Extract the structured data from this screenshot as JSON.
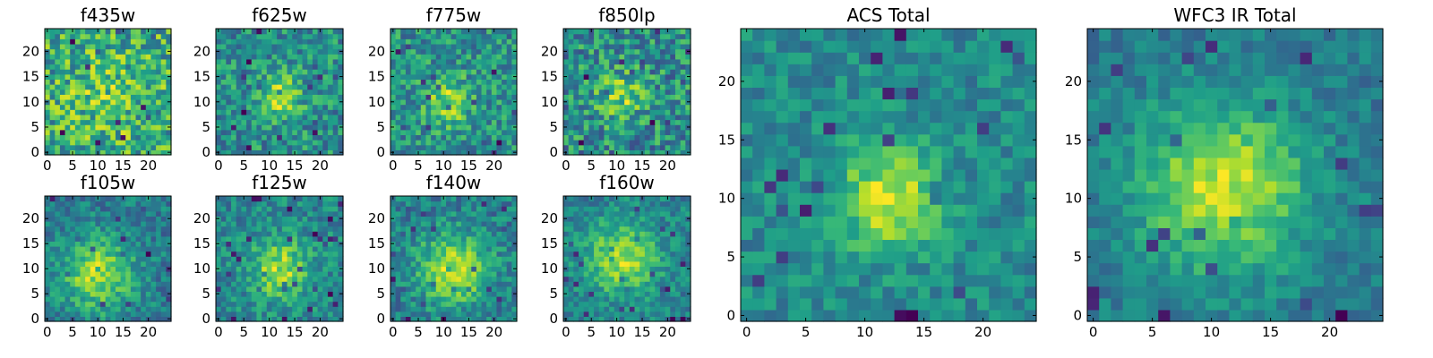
{
  "figure": {
    "background": "#ffffff"
  },
  "colormap": {
    "name": "viridis",
    "stops": [
      "#440154",
      "#482878",
      "#3e4989",
      "#31688e",
      "#26828e",
      "#1f9e89",
      "#35b779",
      "#6ece58",
      "#b5de2b",
      "#fde725"
    ]
  },
  "chart_data": [
    {
      "type": "heatmap",
      "title": "f435w",
      "grid": [
        25,
        25
      ],
      "xlim": [
        -0.5,
        24.5
      ],
      "ylim": [
        -0.5,
        24.5
      ],
      "xticks": [
        0,
        5,
        10,
        15,
        20
      ],
      "yticks": [
        0,
        5,
        10,
        15,
        20
      ],
      "colormap": "viridis",
      "texture": {
        "noise": 0.9,
        "peak": 0.2,
        "center": [
          12,
          11
        ],
        "sigma": 6,
        "seed": 11
      }
    },
    {
      "type": "heatmap",
      "title": "f625w",
      "grid": [
        25,
        25
      ],
      "xlim": [
        -0.5,
        24.5
      ],
      "ylim": [
        -0.5,
        24.5
      ],
      "xticks": [
        0,
        5,
        10,
        15,
        20
      ],
      "yticks": [
        0,
        5,
        10,
        15,
        20
      ],
      "colormap": "viridis",
      "texture": {
        "noise": 0.8,
        "peak": 0.6,
        "center": [
          12,
          11
        ],
        "sigma": 3.2,
        "seed": 23
      }
    },
    {
      "type": "heatmap",
      "title": "f775w",
      "grid": [
        25,
        25
      ],
      "xlim": [
        -0.5,
        24.5
      ],
      "ylim": [
        -0.5,
        24.5
      ],
      "xticks": [
        0,
        5,
        10,
        15,
        20
      ],
      "yticks": [
        0,
        5,
        10,
        15,
        20
      ],
      "colormap": "viridis",
      "texture": {
        "noise": 0.8,
        "peak": 0.6,
        "center": [
          11,
          10
        ],
        "sigma": 3.2,
        "seed": 37
      }
    },
    {
      "type": "heatmap",
      "title": "f850lp",
      "grid": [
        25,
        25
      ],
      "xlim": [
        -0.5,
        24.5
      ],
      "ylim": [
        -0.5,
        24.5
      ],
      "xticks": [
        0,
        5,
        10,
        15,
        20
      ],
      "yticks": [
        0,
        5,
        10,
        15,
        20
      ],
      "colormap": "viridis",
      "texture": {
        "noise": 0.85,
        "peak": 0.45,
        "center": [
          11,
          11
        ],
        "sigma": 3.5,
        "seed": 41
      }
    },
    {
      "type": "heatmap",
      "title": "f105w",
      "grid": [
        25,
        25
      ],
      "xlim": [
        -0.5,
        24.5
      ],
      "ylim": [
        -0.5,
        24.5
      ],
      "xticks": [
        0,
        5,
        10,
        15,
        20
      ],
      "yticks": [
        0,
        5,
        10,
        15,
        20
      ],
      "colormap": "viridis",
      "texture": {
        "noise": 0.55,
        "peak": 0.75,
        "center": [
          10,
          9
        ],
        "sigma": 5,
        "seed": 53
      }
    },
    {
      "type": "heatmap",
      "title": "f125w",
      "grid": [
        25,
        25
      ],
      "xlim": [
        -0.5,
        24.5
      ],
      "ylim": [
        -0.5,
        24.5
      ],
      "xticks": [
        0,
        5,
        10,
        15,
        20
      ],
      "yticks": [
        0,
        5,
        10,
        15,
        20
      ],
      "colormap": "viridis",
      "texture": {
        "noise": 0.6,
        "peak": 0.7,
        "center": [
          12,
          10
        ],
        "sigma": 4,
        "seed": 67
      }
    },
    {
      "type": "heatmap",
      "title": "f140w",
      "grid": [
        25,
        25
      ],
      "xlim": [
        -0.5,
        24.5
      ],
      "ylim": [
        -0.5,
        24.5
      ],
      "xticks": [
        0,
        5,
        10,
        15,
        20
      ],
      "yticks": [
        0,
        5,
        10,
        15,
        20
      ],
      "colormap": "viridis",
      "texture": {
        "noise": 0.55,
        "peak": 0.75,
        "center": [
          12,
          10
        ],
        "sigma": 5,
        "seed": 79
      }
    },
    {
      "type": "heatmap",
      "title": "f160w",
      "grid": [
        25,
        25
      ],
      "xlim": [
        -0.5,
        24.5
      ],
      "ylim": [
        -0.5,
        24.5
      ],
      "xticks": [
        0,
        5,
        10,
        15,
        20
      ],
      "yticks": [
        0,
        5,
        10,
        15,
        20
      ],
      "colormap": "viridis",
      "texture": {
        "noise": 0.55,
        "peak": 0.75,
        "center": [
          11,
          12
        ],
        "sigma": 5,
        "seed": 83
      }
    },
    {
      "type": "heatmap",
      "title": "ACS Total",
      "grid": [
        25,
        25
      ],
      "xlim": [
        -0.5,
        24.5
      ],
      "ylim": [
        -0.5,
        24.5
      ],
      "xticks": [
        0,
        5,
        10,
        15,
        20
      ],
      "yticks": [
        0,
        5,
        10,
        15,
        20
      ],
      "colormap": "viridis",
      "texture": {
        "noise": 0.45,
        "peak": 0.75,
        "center": [
          12,
          10
        ],
        "sigma": 3,
        "seed": 97
      }
    },
    {
      "type": "heatmap",
      "title": "WFC3 IR Total",
      "grid": [
        25,
        25
      ],
      "xlim": [
        -0.5,
        24.5
      ],
      "ylim": [
        -0.5,
        24.5
      ],
      "xticks": [
        0,
        5,
        10,
        15,
        20
      ],
      "yticks": [
        0,
        5,
        10,
        15,
        20
      ],
      "colormap": "viridis",
      "texture": {
        "noise": 0.4,
        "peak": 0.85,
        "center": [
          11,
          11
        ],
        "sigma": 5,
        "seed": 101
      }
    }
  ]
}
